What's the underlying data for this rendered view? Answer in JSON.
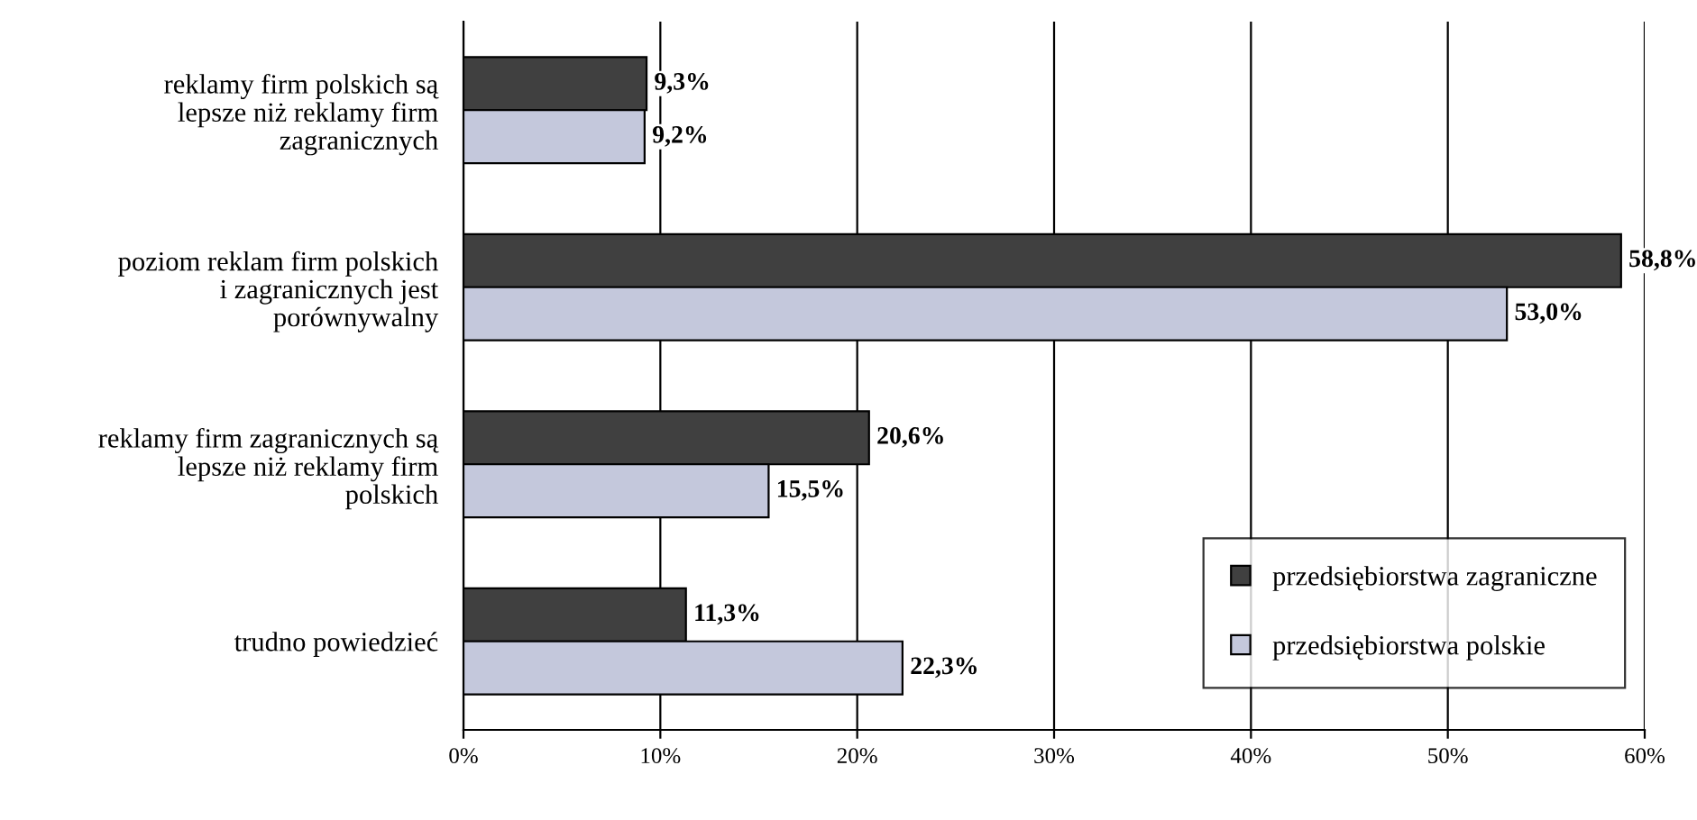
{
  "chart_data": {
    "type": "bar",
    "orientation": "horizontal",
    "categories": [
      "reklamy firm polskich są\nlepsze niż reklamy firm\nzagranicznych",
      "poziom reklam firm polskich\ni zagranicznych jest\nporównywalny",
      "reklamy firm zagranicznych są\nlepsze niż reklamy firm\npolskich",
      "trudno powiedzieć"
    ],
    "series": [
      {
        "name": "przedsiębiorstwa zagraniczne",
        "color": "#404040",
        "values": [
          9.3,
          58.8,
          20.6,
          11.3
        ],
        "value_labels": [
          "9,3%",
          "58,8%",
          "20,6%",
          "11,3%"
        ]
      },
      {
        "name": "przedsiębiorstwa polskie",
        "color": "#c4c8dc",
        "values": [
          9.2,
          53.0,
          15.5,
          22.3
        ],
        "value_labels": [
          "9,2%",
          "53,0%",
          "15,5%",
          "22,3%"
        ]
      }
    ],
    "xlim": [
      0,
      60
    ],
    "xticks": [
      {
        "value": 0,
        "label": "0%"
      },
      {
        "value": 10,
        "label": "10%"
      },
      {
        "value": 20,
        "label": "20%"
      },
      {
        "value": 30,
        "label": "30%"
      },
      {
        "value": 40,
        "label": "40%"
      },
      {
        "value": 50,
        "label": "50%"
      },
      {
        "value": 60,
        "label": "60%"
      }
    ],
    "grid": "x",
    "legend": "bottom right"
  }
}
